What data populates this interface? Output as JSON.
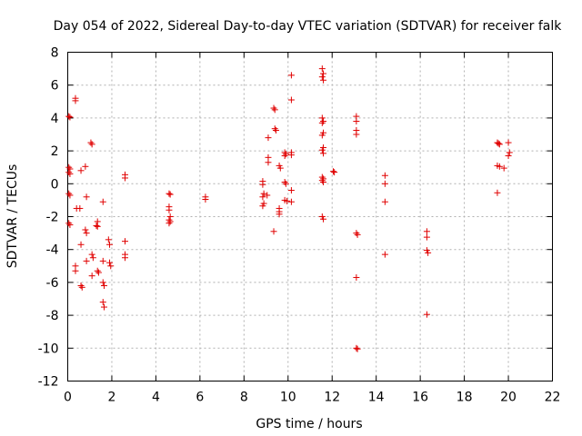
{
  "chart_data": {
    "type": "scatter",
    "title": "Day 054 of 2022, Sidereal Day-to-day VTEC variation (SDTVAR) for receiver falk",
    "xlabel": "GPS time / hours",
    "ylabel": "SDTVAR / TECUs",
    "xlim": [
      0,
      22
    ],
    "ylim": [
      -12,
      8
    ],
    "xticks": [
      0,
      2,
      4,
      6,
      8,
      10,
      12,
      14,
      16,
      18,
      20,
      22
    ],
    "yticks": [
      -12,
      -10,
      -8,
      -6,
      -4,
      -2,
      0,
      2,
      4,
      6,
      8
    ],
    "xtick_labels": [
      "0",
      "2",
      "4",
      "6",
      "8",
      "10",
      "12",
      "14",
      "16",
      "18",
      "20",
      "22"
    ],
    "ytick_labels": [
      "-12",
      "-10",
      "-8",
      "-6",
      "-4",
      "-2",
      "0",
      "2",
      "4",
      "6",
      "8"
    ],
    "grid": true,
    "marker": "+",
    "color": "#e00000",
    "series": [
      {
        "name": "SDTVAR",
        "points": [
          [
            0.05,
            4.1
          ],
          [
            0.1,
            4.05
          ],
          [
            0.05,
            1.0
          ],
          [
            0.1,
            0.9
          ],
          [
            0.05,
            0.7
          ],
          [
            0.1,
            0.6
          ],
          [
            0.05,
            -0.6
          ],
          [
            0.1,
            -0.7
          ],
          [
            0.05,
            -2.4
          ],
          [
            0.1,
            -2.5
          ],
          [
            0.35,
            5.2
          ],
          [
            0.35,
            5.05
          ],
          [
            0.4,
            -1.5
          ],
          [
            0.35,
            -5.0
          ],
          [
            0.35,
            -5.3
          ],
          [
            0.55,
            -1.5
          ],
          [
            0.6,
            -3.7
          ],
          [
            0.6,
            0.8
          ],
          [
            0.6,
            -6.2
          ],
          [
            0.65,
            -6.3
          ],
          [
            0.8,
            1.05
          ],
          [
            0.85,
            -0.8
          ],
          [
            0.8,
            -2.8
          ],
          [
            0.85,
            -3.0
          ],
          [
            0.85,
            -4.7
          ],
          [
            1.05,
            2.5
          ],
          [
            1.1,
            2.4
          ],
          [
            1.1,
            -4.3
          ],
          [
            1.15,
            -4.5
          ],
          [
            1.1,
            -5.6
          ],
          [
            1.35,
            -2.3
          ],
          [
            1.35,
            -2.6
          ],
          [
            1.35,
            -5.3
          ],
          [
            1.4,
            -5.4
          ],
          [
            1.3,
            -2.55
          ],
          [
            1.6,
            -1.1
          ],
          [
            1.6,
            -4.7
          ],
          [
            1.6,
            -6.0
          ],
          [
            1.65,
            -6.2
          ],
          [
            1.6,
            -7.2
          ],
          [
            1.65,
            -7.5
          ],
          [
            1.85,
            -3.4
          ],
          [
            1.9,
            -3.7
          ],
          [
            1.9,
            -4.8
          ],
          [
            1.95,
            -5.0
          ],
          [
            2.6,
            0.55
          ],
          [
            2.6,
            0.35
          ],
          [
            2.6,
            -3.5
          ],
          [
            2.6,
            -4.3
          ],
          [
            2.6,
            -4.5
          ],
          [
            4.6,
            -0.6
          ],
          [
            4.65,
            -0.65
          ],
          [
            4.6,
            -1.4
          ],
          [
            4.6,
            -1.6
          ],
          [
            4.65,
            -2.0
          ],
          [
            4.6,
            -2.2
          ],
          [
            4.65,
            -2.3
          ],
          [
            4.6,
            -2.4
          ],
          [
            6.25,
            -0.8
          ],
          [
            6.25,
            -0.95
          ],
          [
            8.85,
            0.15
          ],
          [
            8.85,
            -0.05
          ],
          [
            8.9,
            -0.6
          ],
          [
            8.85,
            -0.8
          ],
          [
            8.9,
            -1.2
          ],
          [
            8.85,
            -1.35
          ],
          [
            9.1,
            1.6
          ],
          [
            9.1,
            1.3
          ],
          [
            9.1,
            2.8
          ],
          [
            9.05,
            -0.7
          ],
          [
            9.35,
            4.6
          ],
          [
            9.4,
            4.5
          ],
          [
            9.4,
            3.35
          ],
          [
            9.45,
            3.25
          ],
          [
            9.35,
            -2.9
          ],
          [
            9.6,
            1.1
          ],
          [
            9.65,
            0.95
          ],
          [
            9.6,
            -1.5
          ],
          [
            9.6,
            -1.7
          ],
          [
            9.6,
            -1.85
          ],
          [
            9.85,
            1.9
          ],
          [
            9.9,
            1.8
          ],
          [
            9.85,
            1.7
          ],
          [
            9.85,
            0.1
          ],
          [
            9.9,
            0.0
          ],
          [
            9.85,
            -1.0
          ],
          [
            9.95,
            -1.05
          ],
          [
            10.15,
            6.6
          ],
          [
            10.15,
            5.1
          ],
          [
            10.15,
            1.9
          ],
          [
            10.15,
            1.75
          ],
          [
            10.15,
            -0.4
          ],
          [
            10.15,
            -1.1
          ],
          [
            11.55,
            7.0
          ],
          [
            11.6,
            6.7
          ],
          [
            11.55,
            6.5
          ],
          [
            11.6,
            6.3
          ],
          [
            11.55,
            4.0
          ],
          [
            11.6,
            3.8
          ],
          [
            11.55,
            3.7
          ],
          [
            11.6,
            3.1
          ],
          [
            11.55,
            2.95
          ],
          [
            11.6,
            2.2
          ],
          [
            11.55,
            2.05
          ],
          [
            11.6,
            1.85
          ],
          [
            11.55,
            0.4
          ],
          [
            11.6,
            0.3
          ],
          [
            11.55,
            0.2
          ],
          [
            11.6,
            0.1
          ],
          [
            11.55,
            -2.0
          ],
          [
            11.6,
            -2.15
          ],
          [
            12.05,
            0.75
          ],
          [
            12.1,
            0.7
          ],
          [
            13.1,
            4.1
          ],
          [
            13.1,
            3.8
          ],
          [
            13.1,
            3.25
          ],
          [
            13.1,
            3.0
          ],
          [
            13.1,
            -3.0
          ],
          [
            13.15,
            -3.1
          ],
          [
            13.1,
            -5.7
          ],
          [
            13.1,
            -10.0
          ],
          [
            13.15,
            -10.05
          ],
          [
            14.4,
            0.5
          ],
          [
            14.4,
            0.0
          ],
          [
            14.4,
            -1.1
          ],
          [
            14.4,
            -4.3
          ],
          [
            16.3,
            -2.9
          ],
          [
            16.3,
            -3.25
          ],
          [
            16.3,
            -4.05
          ],
          [
            16.35,
            -4.2
          ],
          [
            16.3,
            -7.95
          ],
          [
            19.5,
            2.5
          ],
          [
            19.55,
            2.45
          ],
          [
            19.6,
            2.4
          ],
          [
            19.5,
            1.1
          ],
          [
            19.6,
            1.05
          ],
          [
            19.8,
            0.95
          ],
          [
            19.5,
            -0.55
          ],
          [
            20.0,
            2.5
          ],
          [
            20.05,
            1.9
          ],
          [
            20.0,
            1.7
          ]
        ]
      }
    ]
  }
}
